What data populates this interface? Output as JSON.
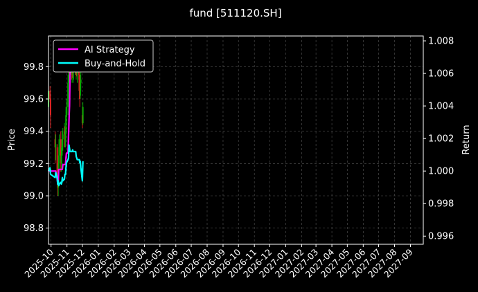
{
  "chart_data": {
    "type": "line",
    "title": "fund [511120.SH]",
    "ylabel_left": "Price",
    "ylabel_right": "Return",
    "ylim_left": [
      98.7,
      99.99
    ],
    "ylim_right": [
      0.9955,
      1.0083
    ],
    "left_ticks": [
      "98.8",
      "99.0",
      "99.2",
      "99.4",
      "99.6",
      "99.8"
    ],
    "right_ticks": [
      "0.996",
      "0.998",
      "1.000",
      "1.002",
      "1.004",
      "1.006",
      "1.008"
    ],
    "x_ticks": [
      "2025-10",
      "2025-11",
      "2025-12",
      "2026-01",
      "2026-02",
      "2026-03",
      "2026-04",
      "2026-05",
      "2026-06",
      "2026-07",
      "2026-08",
      "2026-09",
      "2026-10",
      "2026-11",
      "2026-12",
      "2027-01",
      "2027-02",
      "2027-03",
      "2027-04",
      "2027-05",
      "2027-06",
      "2027-07",
      "2027-08",
      "2027-09"
    ],
    "grid": true,
    "legend_position": "top-left",
    "colors": {
      "ai": "#ff00ff",
      "bh": "#00ffff",
      "up": "#00aa00",
      "down": "#dd2222"
    },
    "series": [
      {
        "name": "AI Strategy",
        "axis": "right",
        "x": [
          "2025-09-26",
          "2025-09-29",
          "2025-09-30",
          "2025-10-09",
          "2025-10-10",
          "2025-10-13",
          "2025-10-14",
          "2025-10-15",
          "2025-10-16",
          "2025-10-17",
          "2025-10-20",
          "2025-10-21",
          "2025-10-22",
          "2025-10-23",
          "2025-10-24",
          "2025-10-27",
          "2025-10-28",
          "2025-10-29",
          "2025-10-30",
          "2025-10-31",
          "2025-11-03",
          "2025-11-04",
          "2025-11-05",
          "2025-11-06",
          "2025-11-07",
          "2025-11-10",
          "2025-11-11",
          "2025-11-12",
          "2025-11-13",
          "2025-11-14",
          "2025-11-17",
          "2025-11-18",
          "2025-11-19",
          "2025-11-20",
          "2025-11-21",
          "2025-11-24",
          "2025-11-25",
          "2025-11-26",
          "2025-11-27",
          "2025-11-28",
          "2025-12-01",
          "2025-12-02"
        ],
        "values": [
          1.0,
          1.0,
          1.0,
          1.0,
          1.0,
          0.9995,
          0.9992,
          0.9993,
          1.0001,
          1.0001,
          1.0001,
          1.0001,
          1.0001,
          1.0001,
          1.0004,
          1.0004,
          1.0004,
          1.0004,
          1.0008,
          1.0011,
          1.0011,
          1.0021,
          1.0031,
          1.004,
          1.006,
          1.0067,
          1.0074,
          1.0073,
          1.0075,
          1.0074,
          1.0073,
          1.0074,
          1.0075,
          1.0074,
          1.0075,
          1.0075,
          1.0073,
          1.0072,
          1.0073,
          1.0074,
          1.0073,
          1.0074
        ]
      },
      {
        "name": "Buy-and-Hold",
        "axis": "right",
        "x": [
          "2025-09-26",
          "2025-09-29",
          "2025-09-30",
          "2025-10-09",
          "2025-10-10",
          "2025-10-13",
          "2025-10-14",
          "2025-10-15",
          "2025-10-16",
          "2025-10-17",
          "2025-10-20",
          "2025-10-21",
          "2025-10-22",
          "2025-10-23",
          "2025-10-24",
          "2025-10-27",
          "2025-10-28",
          "2025-10-29",
          "2025-10-30",
          "2025-10-31",
          "2025-11-03",
          "2025-11-04",
          "2025-11-05",
          "2025-11-06",
          "2025-11-07",
          "2025-11-10",
          "2025-11-11",
          "2025-11-12",
          "2025-11-13",
          "2025-11-14",
          "2025-11-17",
          "2025-11-18",
          "2025-11-19",
          "2025-11-20",
          "2025-11-21",
          "2025-11-24",
          "2025-11-25",
          "2025-11-26",
          "2025-11-27",
          "2025-11-28",
          "2025-12-01",
          "2025-12-02"
        ],
        "values": [
          1.0,
          1.0002,
          0.9998,
          0.9996,
          0.9999,
          0.9996,
          0.9992,
          0.9994,
          0.9991,
          0.9992,
          0.9993,
          0.9992,
          0.9993,
          0.9996,
          0.9994,
          0.9995,
          0.9998,
          0.9998,
          1.0002,
          1.0005,
          1.0007,
          1.0008,
          1.0016,
          1.0014,
          1.0012,
          1.0012,
          1.0012,
          1.0013,
          1.0012,
          1.0012,
          1.0012,
          1.0012,
          1.0009,
          1.0008,
          1.0007,
          1.0007,
          1.0007,
          1.0005,
          1.0006,
          1.0002,
          0.9994,
          1.0006
        ]
      }
    ],
    "ohlc": [
      {
        "x": "2025-09-26",
        "open": 99.55,
        "high": 99.68,
        "low": 99.52,
        "close": 99.65
      },
      {
        "x": "2025-09-29",
        "open": 99.65,
        "high": 99.68,
        "low": 99.58,
        "close": 99.6
      },
      {
        "x": "2025-09-30",
        "open": 99.6,
        "high": 99.62,
        "low": 99.42,
        "close": 99.5
      },
      {
        "x": "2025-10-09",
        "open": 99.35,
        "high": 99.4,
        "low": 99.2,
        "close": 99.3
      },
      {
        "x": "2025-10-10",
        "open": 99.3,
        "high": 99.38,
        "low": 99.22,
        "close": 99.32
      },
      {
        "x": "2025-10-13",
        "open": 99.3,
        "high": 99.32,
        "low": 99.1,
        "close": 99.15
      },
      {
        "x": "2025-10-14",
        "open": 99.15,
        "high": 99.2,
        "low": 99.0,
        "close": 99.05
      },
      {
        "x": "2025-10-15",
        "open": 99.05,
        "high": 99.2,
        "low": 99.0,
        "close": 99.15
      },
      {
        "x": "2025-10-16",
        "open": 99.15,
        "high": 99.3,
        "low": 99.12,
        "close": 99.25
      },
      {
        "x": "2025-10-17",
        "open": 99.25,
        "high": 99.38,
        "low": 99.2,
        "close": 99.35
      },
      {
        "x": "2025-10-20",
        "open": 99.35,
        "high": 99.4,
        "low": 99.15,
        "close": 99.2
      },
      {
        "x": "2025-10-21",
        "open": 99.2,
        "high": 99.3,
        "low": 99.15,
        "close": 99.25
      },
      {
        "x": "2025-10-22",
        "open": 99.25,
        "high": 99.35,
        "low": 99.2,
        "close": 99.3
      },
      {
        "x": "2025-10-23",
        "open": 99.3,
        "high": 99.4,
        "low": 99.25,
        "close": 99.35
      },
      {
        "x": "2025-10-24",
        "open": 99.35,
        "high": 99.42,
        "low": 99.28,
        "close": 99.38
      },
      {
        "x": "2025-10-27",
        "open": 99.38,
        "high": 99.45,
        "low": 99.3,
        "close": 99.4
      },
      {
        "x": "2025-10-28",
        "open": 99.4,
        "high": 99.43,
        "low": 99.3,
        "close": 99.33
      },
      {
        "x": "2025-10-29",
        "open": 99.33,
        "high": 99.42,
        "low": 99.3,
        "close": 99.4
      },
      {
        "x": "2025-10-30",
        "open": 99.4,
        "high": 99.55,
        "low": 99.38,
        "close": 99.5
      },
      {
        "x": "2025-10-31",
        "open": 99.5,
        "high": 99.6,
        "low": 99.45,
        "close": 99.55
      },
      {
        "x": "2025-11-03",
        "open": 99.55,
        "high": 99.75,
        "low": 99.5,
        "close": 99.7
      },
      {
        "x": "2025-11-04",
        "open": 99.7,
        "high": 99.8,
        "low": 99.6,
        "close": 99.75
      },
      {
        "x": "2025-11-05",
        "open": 99.75,
        "high": 99.88,
        "low": 99.7,
        "close": 99.85
      },
      {
        "x": "2025-11-06",
        "open": 99.85,
        "high": 99.9,
        "low": 99.72,
        "close": 99.76
      },
      {
        "x": "2025-11-07",
        "open": 99.76,
        "high": 99.85,
        "low": 99.7,
        "close": 99.8
      },
      {
        "x": "2025-11-10",
        "open": 99.8,
        "high": 99.82,
        "low": 99.72,
        "close": 99.75
      },
      {
        "x": "2025-11-11",
        "open": 99.75,
        "high": 99.85,
        "low": 99.7,
        "close": 99.8
      },
      {
        "x": "2025-11-12",
        "open": 99.8,
        "high": 99.86,
        "low": 99.73,
        "close": 99.77
      },
      {
        "x": "2025-11-13",
        "open": 99.77,
        "high": 99.82,
        "low": 99.7,
        "close": 99.78
      },
      {
        "x": "2025-11-14",
        "open": 99.78,
        "high": 99.85,
        "low": 99.72,
        "close": 99.8
      },
      {
        "x": "2025-11-17",
        "open": 99.8,
        "high": 99.9,
        "low": 99.75,
        "close": 99.85
      },
      {
        "x": "2025-11-18",
        "open": 99.85,
        "high": 99.88,
        "low": 99.75,
        "close": 99.78
      },
      {
        "x": "2025-11-19",
        "open": 99.78,
        "high": 99.85,
        "low": 99.72,
        "close": 99.82
      },
      {
        "x": "2025-11-20",
        "open": 99.82,
        "high": 99.86,
        "low": 99.74,
        "close": 99.76
      },
      {
        "x": "2025-11-21",
        "open": 99.76,
        "high": 99.82,
        "low": 99.7,
        "close": 99.8
      },
      {
        "x": "2025-11-24",
        "open": 99.8,
        "high": 99.84,
        "low": 99.72,
        "close": 99.75
      },
      {
        "x": "2025-11-25",
        "open": 99.75,
        "high": 99.8,
        "low": 99.6,
        "close": 99.65
      },
      {
        "x": "2025-11-26",
        "open": 99.65,
        "high": 99.7,
        "low": 99.55,
        "close": 99.62
      },
      {
        "x": "2025-11-27",
        "open": 99.62,
        "high": 99.75,
        "low": 99.6,
        "close": 99.7
      },
      {
        "x": "2025-11-28",
        "open": 99.7,
        "high": 99.78,
        "low": 99.65,
        "close": 99.72
      },
      {
        "x": "2025-12-01",
        "open": 99.5,
        "high": 99.55,
        "low": 99.42,
        "close": 99.45
      },
      {
        "x": "2025-12-02",
        "open": 99.45,
        "high": 99.58,
        "low": 99.44,
        "close": 99.55
      }
    ]
  }
}
